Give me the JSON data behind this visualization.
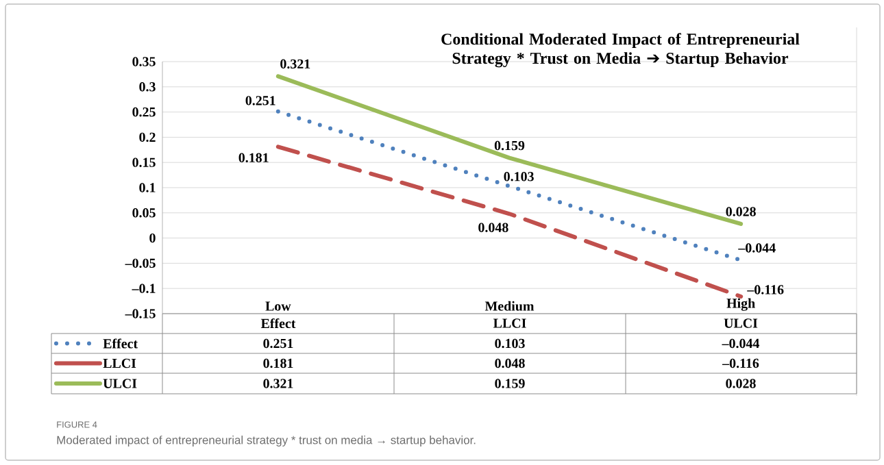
{
  "chart_data": {
    "type": "line",
    "title": "Conditional Moderated Impact of Entrepreneurial Strategy * Trust on Media ➔ Startup Behavior",
    "categories": [
      "Low",
      "Medium",
      "High"
    ],
    "series": [
      {
        "name": "Effect",
        "color": "#4f81bd",
        "line_style": "dotted",
        "values": [
          0.251,
          0.103,
          -0.044
        ],
        "value_labels": [
          "0.251",
          "0.103",
          "–0.044"
        ]
      },
      {
        "name": "LLCI",
        "color": "#c0504d",
        "line_style": "dashed",
        "values": [
          0.181,
          0.048,
          -0.116
        ],
        "value_labels": [
          "0.181",
          "0.048",
          "–0.116"
        ]
      },
      {
        "name": "ULCI",
        "color": "#9bbb59",
        "line_style": "solid",
        "values": [
          0.321,
          0.159,
          0.028
        ],
        "value_labels": [
          "0.321",
          "0.159",
          "0.028"
        ]
      }
    ],
    "ylim": [
      -0.15,
      0.35
    ],
    "yticks": [
      {
        "value": -0.15,
        "label": "–0.15"
      },
      {
        "value": -0.1,
        "label": "–0.1"
      },
      {
        "value": -0.05,
        "label": "–0.05"
      },
      0,
      0.05,
      0.1,
      0.15,
      0.2,
      0.25,
      0.3,
      0.35
    ],
    "grid": "y",
    "legend": "bottom",
    "annotations": [
      "Effect",
      "LLCI",
      "ULCI",
      "FIGURE 4",
      "Moderated impact of entrepreneurial strategy * trust on media → startup behavior."
    ]
  }
}
